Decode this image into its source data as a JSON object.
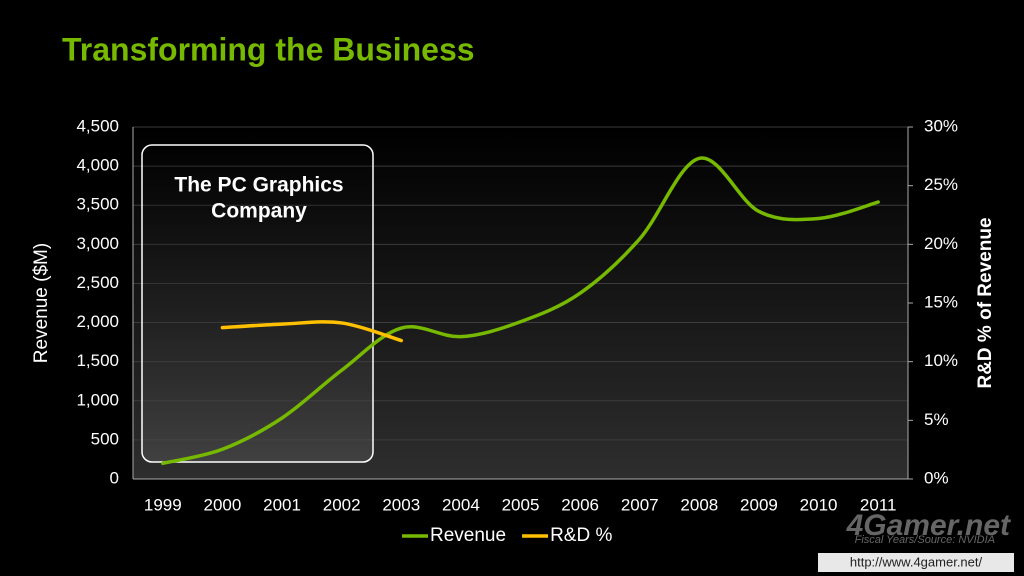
{
  "chart_data": {
    "type": "line",
    "title": "Transforming the Business",
    "y_label": "Revenue ($M)",
    "y2_label": "R&D % of Revenue",
    "annotation": [
      "The PC Graphics",
      "Company"
    ],
    "footnote": "Fiscal Years/Source: NVIDIA",
    "watermark": "4Gamer.net",
    "watermark_url": "http://www.4gamer.net/",
    "categories": [
      "1999",
      "2000",
      "2001",
      "2002",
      "2003",
      "2004",
      "2005",
      "2006",
      "2007",
      "2008",
      "2009",
      "2010",
      "2011"
    ],
    "series": [
      {
        "name": "Revenue",
        "color": "#76b900",
        "values": [
          200,
          380,
          780,
          1390,
          1930,
          1820,
          2010,
          2375,
          3070,
          4100,
          3420,
          3330,
          3540
        ]
      },
      {
        "name": "R&D %",
        "color": "#ffc000",
        "axis": "y2",
        "values": [
          null,
          12.9,
          13.2,
          13.3,
          11.8,
          null,
          null,
          null,
          null,
          null,
          null,
          null,
          null
        ]
      }
    ],
    "ylim": [
      0,
      4500
    ],
    "yticks": [
      0,
      500,
      {
        "value": 1000,
        "label": "1,000"
      },
      {
        "value": 1500,
        "label": "1,500"
      },
      {
        "value": 2000,
        "label": "2,000"
      },
      {
        "value": 2500,
        "label": "2,500"
      },
      {
        "value": 3000,
        "label": "3,000"
      },
      {
        "value": 3500,
        "label": "3,500"
      },
      {
        "value": 4000,
        "label": "4,000"
      },
      {
        "value": 4500,
        "label": "4,500"
      }
    ],
    "y2lim": [
      0,
      30
    ],
    "y2ticks": [
      {
        "value": 0,
        "label": "0%"
      },
      {
        "value": 5,
        "label": "5%"
      },
      {
        "value": 10,
        "label": "10%"
      },
      {
        "value": 15,
        "label": "15%"
      },
      {
        "value": 20,
        "label": "20%"
      },
      {
        "value": 25,
        "label": "25%"
      },
      {
        "value": 30,
        "label": "30%"
      }
    ],
    "grid": true,
    "legend": "bottom"
  }
}
